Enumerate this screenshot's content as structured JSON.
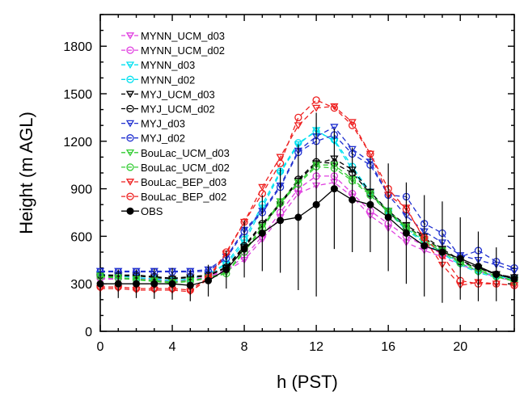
{
  "chart_data": {
    "type": "line",
    "xlabel": "h (PST)",
    "ylabel": "Height (m AGL)",
    "xlim": [
      0,
      23
    ],
    "ylim": [
      0,
      2000
    ],
    "xticks": [
      "0",
      "4",
      "8",
      "12",
      "16",
      "20"
    ],
    "xtick_values": [
      0,
      4,
      8,
      12,
      16,
      20
    ],
    "yticks": [
      "0",
      "300",
      "600",
      "900",
      "1200",
      "1500",
      "1800"
    ],
    "ytick_values": [
      0,
      300,
      600,
      900,
      1200,
      1500,
      1800
    ],
    "grid": false,
    "legend_position": "top-left",
    "x": [
      0,
      1,
      2,
      3,
      4,
      5,
      6,
      7,
      8,
      9,
      10,
      11,
      12,
      13,
      14,
      15,
      16,
      17,
      18,
      19,
      20,
      21,
      22,
      23
    ],
    "series": [
      {
        "name": "MYNN_UCM_d03",
        "color": "#e040e0",
        "marker": "triangle-down",
        "dash": "6,4",
        "values": [
          330,
          330,
          330,
          320,
          310,
          320,
          340,
          380,
          450,
          580,
          720,
          870,
          920,
          940,
          850,
          730,
          650,
          560,
          510,
          470,
          420,
          380,
          340,
          320
        ]
      },
      {
        "name": "MYNN_UCM_d02",
        "color": "#e040e0",
        "marker": "circle",
        "dash": "6,4",
        "values": [
          335,
          335,
          335,
          325,
          315,
          325,
          345,
          390,
          470,
          600,
          750,
          900,
          980,
          980,
          870,
          760,
          680,
          600,
          540,
          490,
          440,
          400,
          360,
          340
        ]
      },
      {
        "name": "MYNN_d03",
        "color": "#00e0f0",
        "marker": "triangle-down",
        "dash": "6,4",
        "values": [
          360,
          350,
          340,
          330,
          320,
          330,
          360,
          420,
          560,
          780,
          1000,
          1180,
          1270,
          1200,
          1020,
          860,
          750,
          640,
          560,
          490,
          420,
          370,
          340,
          330
        ]
      },
      {
        "name": "MYNN_d02",
        "color": "#00e0f0",
        "marker": "circle",
        "dash": "6,4",
        "values": [
          360,
          350,
          340,
          330,
          320,
          330,
          360,
          430,
          580,
          800,
          1010,
          1190,
          1260,
          1210,
          1040,
          880,
          760,
          650,
          570,
          500,
          430,
          380,
          350,
          330
        ]
      },
      {
        "name": "MYJ_UCM_d03",
        "color": "#000000",
        "marker": "triangle-down",
        "dash": "6,4",
        "values": [
          350,
          350,
          350,
          340,
          330,
          340,
          350,
          400,
          530,
          670,
          800,
          950,
          1060,
          1090,
          1020,
          880,
          760,
          670,
          600,
          520,
          450,
          400,
          360,
          340
        ]
      },
      {
        "name": "MYJ_UCM_d02",
        "color": "#000000",
        "marker": "circle",
        "dash": "6,4",
        "values": [
          355,
          355,
          355,
          345,
          335,
          345,
          355,
          405,
          540,
          680,
          810,
          960,
          1070,
          1060,
          1000,
          870,
          750,
          660,
          590,
          510,
          440,
          400,
          360,
          340
        ]
      },
      {
        "name": "MYJ_d03",
        "color": "#2030d0",
        "marker": "triangle-down",
        "dash": "6,4",
        "values": [
          380,
          380,
          380,
          380,
          380,
          380,
          390,
          470,
          640,
          760,
          920,
          1140,
          1230,
          1290,
          1150,
          1070,
          860,
          730,
          630,
          560,
          480,
          450,
          420,
          380
        ]
      },
      {
        "name": "MYJ_d02",
        "color": "#2030d0",
        "marker": "circle",
        "dash": "6,4",
        "values": [
          375,
          375,
          375,
          375,
          375,
          375,
          380,
          460,
          630,
          750,
          910,
          1130,
          1200,
          1240,
          1120,
          1050,
          860,
          850,
          680,
          620,
          470,
          510,
          440,
          400
        ]
      },
      {
        "name": "BouLac_UCM_d03",
        "color": "#33cc33",
        "marker": "triangle-down",
        "dash": "6,4",
        "values": [
          350,
          340,
          330,
          320,
          310,
          320,
          340,
          370,
          510,
          660,
          820,
          940,
          1050,
          1050,
          960,
          870,
          760,
          660,
          580,
          510,
          440,
          390,
          350,
          320
        ]
      },
      {
        "name": "BouLac_UCM_d02",
        "color": "#33cc33",
        "marker": "circle",
        "dash": "6,4",
        "values": [
          345,
          335,
          325,
          315,
          305,
          315,
          335,
          365,
          500,
          650,
          810,
          930,
          1040,
          1030,
          950,
          860,
          750,
          650,
          570,
          500,
          430,
          380,
          345,
          315
        ]
      },
      {
        "name": "BouLac_BEP_d03",
        "color": "#ee2020",
        "marker": "triangle-down",
        "dash": "6,4",
        "values": [
          270,
          270,
          260,
          260,
          260,
          250,
          330,
          490,
          690,
          910,
          1100,
          1300,
          1410,
          1420,
          1320,
          1120,
          860,
          780,
          580,
          420,
          290,
          310,
          300,
          290
        ]
      },
      {
        "name": "BouLac_BEP_d02",
        "color": "#ee2020",
        "marker": "circle",
        "dash": "6,4",
        "values": [
          280,
          280,
          270,
          270,
          270,
          260,
          340,
          500,
          690,
          870,
          1060,
          1350,
          1460,
          1410,
          1300,
          1120,
          900,
          770,
          590,
          480,
          320,
          300,
          300,
          290
        ]
      },
      {
        "name": "OBS",
        "color": "#000000",
        "marker": "circle-filled",
        "dash": "",
        "values": [
          300,
          300,
          300,
          300,
          300,
          290,
          320,
          390,
          520,
          620,
          700,
          720,
          800,
          900,
          830,
          800,
          720,
          620,
          540,
          500,
          460,
          410,
          360,
          330
        ],
        "error": [
          80,
          90,
          90,
          95,
          100,
          100,
          100,
          120,
          180,
          240,
          330,
          460,
          580,
          380,
          330,
          300,
          340,
          320,
          320,
          320,
          260,
          220,
          170,
          120
        ]
      }
    ]
  }
}
